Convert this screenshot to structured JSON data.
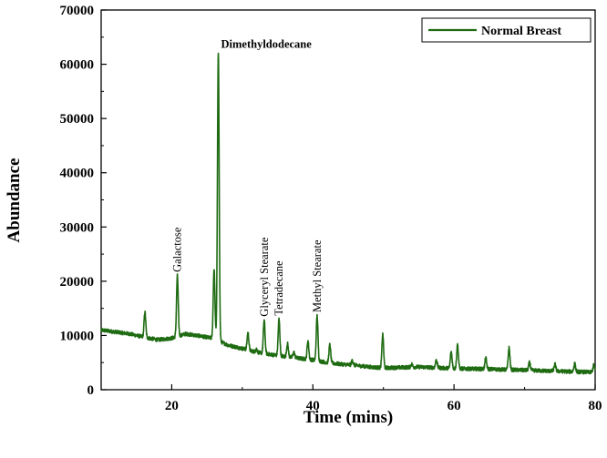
{
  "chart_data": {
    "type": "line",
    "xlabel": "Time (mins)",
    "ylabel": "Abundance",
    "xlim": [
      10,
      80
    ],
    "ylim": [
      0,
      70000
    ],
    "xticks": [
      20,
      40,
      60,
      80
    ],
    "yticks": [
      0,
      10000,
      20000,
      30000,
      40000,
      50000,
      60000,
      70000
    ],
    "grid": false,
    "legend_position": "top-right",
    "series": [
      {
        "name": "Normal Breast",
        "color": "#1e6b12",
        "baseline": [
          [
            10,
            11000
          ],
          [
            14,
            10300
          ],
          [
            16,
            9700
          ],
          [
            18,
            9200
          ],
          [
            20,
            9500
          ],
          [
            22,
            10300
          ],
          [
            24,
            9900
          ],
          [
            26,
            9400
          ],
          [
            28,
            8200
          ],
          [
            30,
            7600
          ],
          [
            32,
            6900
          ],
          [
            34,
            6500
          ],
          [
            36,
            6100
          ],
          [
            38,
            5800
          ],
          [
            40,
            5500
          ],
          [
            42,
            5000
          ],
          [
            44,
            4700
          ],
          [
            46,
            4500
          ],
          [
            48,
            4200
          ],
          [
            50,
            4000
          ],
          [
            55,
            4200
          ],
          [
            60,
            3900
          ],
          [
            65,
            3800
          ],
          [
            70,
            3600
          ],
          [
            75,
            3400
          ],
          [
            80,
            3200
          ]
        ],
        "peaks": [
          [
            16.2,
            14300
          ],
          [
            20.8,
            21000
          ],
          [
            26.0,
            22300
          ],
          [
            26.6,
            62000
          ],
          [
            30.8,
            10500
          ],
          [
            32.0,
            7500
          ],
          [
            33.1,
            12800
          ],
          [
            35.2,
            13000
          ],
          [
            36.4,
            8500
          ],
          [
            37.3,
            6900
          ],
          [
            39.3,
            9000
          ],
          [
            40.6,
            13600
          ],
          [
            42.4,
            8300
          ],
          [
            45.6,
            5400
          ],
          [
            49.9,
            10200
          ],
          [
            54,
            4700
          ],
          [
            57.5,
            5500
          ],
          [
            59.6,
            7000
          ],
          [
            60.5,
            8300
          ],
          [
            64.5,
            5800
          ],
          [
            67.8,
            7700
          ],
          [
            70.7,
            5000
          ],
          [
            74.3,
            4700
          ],
          [
            77.1,
            4800
          ],
          [
            79.8,
            4500
          ]
        ],
        "noise_amplitude": 350
      }
    ],
    "annotations": [
      {
        "text": "Dimethyldodecane",
        "x": 26.6,
        "y": 62000,
        "orientation": "horizontal"
      },
      {
        "text": "Galactose",
        "x": 20.8,
        "y": 21000,
        "orientation": "vertical"
      },
      {
        "text": "Glyceryl Stearate",
        "x": 33.1,
        "y": 12800,
        "orientation": "vertical"
      },
      {
        "text": "Tetradecane",
        "x": 35.2,
        "y": 13000,
        "orientation": "vertical"
      },
      {
        "text": "Methyl Stearate",
        "x": 40.6,
        "y": 13600,
        "orientation": "vertical"
      }
    ]
  }
}
